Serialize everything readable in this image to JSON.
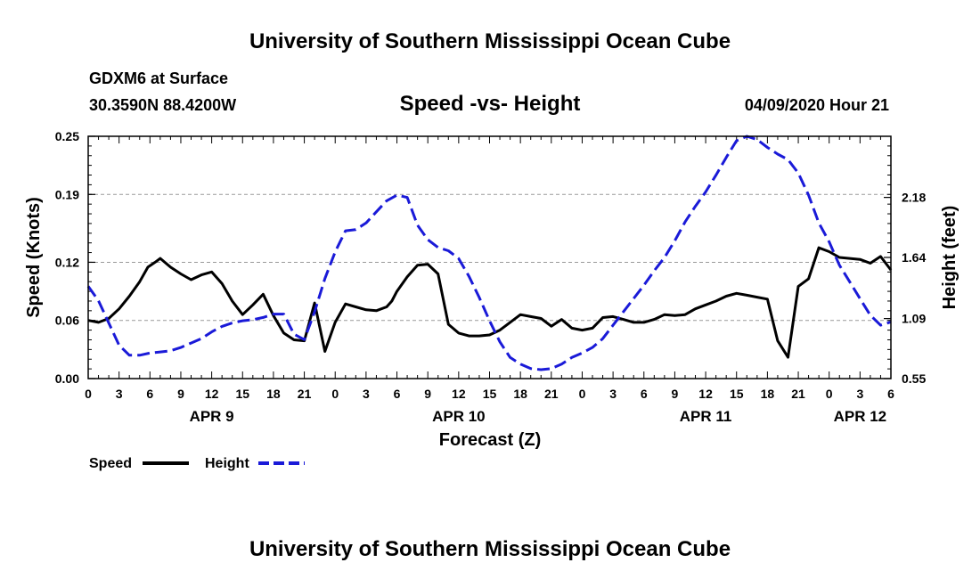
{
  "header": {
    "title": "University of Southern Mississippi Ocean Cube",
    "station": "GDXM6 at Surface",
    "coords": "30.3590N 88.4200W",
    "datetime": "04/09/2020 Hour 21",
    "footer": "University of Southern Mississippi Ocean Cube"
  },
  "chart_data": {
    "type": "line",
    "title": "Speed -vs- Height",
    "xlabel": "Forecast (Z)",
    "ylabel_left": "Speed (Knots)",
    "ylabel_right": "Height (feet)",
    "xlim": [
      0,
      78
    ],
    "x_tick_labels": [
      "0",
      "3",
      "6",
      "9",
      "12",
      "15",
      "18",
      "21",
      "0",
      "3",
      "6",
      "9",
      "12",
      "15",
      "18",
      "21",
      "0",
      "3",
      "6",
      "9",
      "12",
      "15",
      "18",
      "21",
      "0",
      "3",
      "6"
    ],
    "date_labels": [
      {
        "label": "APR 9",
        "hour": 12
      },
      {
        "label": "APR 10",
        "hour": 36
      },
      {
        "label": "APR 11",
        "hour": 60
      },
      {
        "label": "APR 12",
        "hour": 75
      }
    ],
    "y_left": {
      "ylim": [
        0,
        0.25
      ],
      "ticks": [
        "0.00",
        "0.06",
        "0.12",
        "0.19",
        "0.25"
      ]
    },
    "y_right": {
      "ylim": [
        0.55,
        2.73
      ],
      "ticks": [
        "0.55",
        "1.09",
        "1.64",
        "2.18"
      ]
    },
    "colors": {
      "speed": "#000000",
      "height": "#1a1ad8"
    },
    "series": [
      {
        "name": "Speed",
        "axis": "left",
        "x": [
          0,
          1,
          2,
          3,
          4,
          5,
          5.8,
          6.5,
          7,
          8,
          9,
          10,
          11,
          12,
          13,
          14,
          15,
          16,
          17,
          18,
          19,
          20,
          21,
          22,
          23,
          24,
          25,
          26,
          27,
          28,
          29,
          29.5,
          30,
          31,
          32,
          33,
          34,
          35,
          36,
          37,
          38,
          39,
          40,
          41,
          42,
          43,
          44,
          45,
          46,
          47,
          48,
          49,
          50,
          51,
          52,
          53,
          54,
          55,
          56,
          57,
          58,
          59,
          60,
          61,
          62,
          63,
          64,
          65,
          66,
          67,
          68,
          69,
          70,
          71,
          72,
          73,
          74,
          75,
          76,
          77,
          78
        ],
        "values": [
          0.06,
          0.058,
          0.062,
          0.072,
          0.085,
          0.1,
          0.115,
          0.12,
          0.124,
          0.115,
          0.108,
          0.102,
          0.107,
          0.11,
          0.098,
          0.08,
          0.066,
          0.076,
          0.087,
          0.065,
          0.047,
          0.04,
          0.039,
          0.078,
          0.028,
          0.058,
          0.077,
          0.074,
          0.071,
          0.07,
          0.074,
          0.08,
          0.09,
          0.105,
          0.117,
          0.118,
          0.108,
          0.056,
          0.047,
          0.044,
          0.044,
          0.045,
          0.05,
          0.058,
          0.066,
          0.064,
          0.062,
          0.054,
          0.061,
          0.052,
          0.05,
          0.052,
          0.063,
          0.064,
          0.061,
          0.058,
          0.058,
          0.061,
          0.066,
          0.065,
          0.066,
          0.072,
          0.076,
          0.08,
          0.085,
          0.088,
          0.086,
          0.084,
          0.082,
          0.039,
          0.022,
          0.095,
          0.103,
          0.135,
          0.131,
          0.125,
          0.124,
          0.123,
          0.119,
          0.126,
          0.112
        ]
      },
      {
        "name": "Height",
        "axis": "right",
        "x": [
          0,
          1,
          2,
          3,
          4,
          5,
          6,
          7,
          8,
          9,
          10,
          11,
          12,
          13,
          14,
          15,
          16,
          17,
          18,
          19,
          20,
          21,
          22,
          23,
          24,
          25,
          26,
          27,
          28,
          29,
          30,
          31,
          32,
          33,
          34,
          35,
          36,
          37,
          38,
          39,
          40,
          41,
          42,
          43,
          44,
          45,
          46,
          47,
          48,
          49,
          50,
          51,
          52,
          53,
          54,
          55,
          56,
          57,
          58,
          59,
          60,
          61,
          62,
          63,
          64,
          65,
          66,
          67,
          68,
          69,
          70,
          71,
          72,
          73,
          74,
          75,
          76,
          77,
          78
        ],
        "values": [
          1.38,
          1.25,
          1.05,
          0.85,
          0.76,
          0.76,
          0.78,
          0.79,
          0.8,
          0.83,
          0.87,
          0.91,
          0.97,
          1.02,
          1.05,
          1.07,
          1.08,
          1.1,
          1.13,
          1.13,
          0.95,
          0.9,
          1.15,
          1.45,
          1.69,
          1.88,
          1.89,
          1.95,
          2.05,
          2.15,
          2.2,
          2.18,
          1.93,
          1.8,
          1.73,
          1.7,
          1.63,
          1.47,
          1.28,
          1.07,
          0.88,
          0.74,
          0.68,
          0.64,
          0.63,
          0.64,
          0.68,
          0.74,
          0.78,
          0.83,
          0.91,
          1.03,
          1.15,
          1.27,
          1.39,
          1.52,
          1.64,
          1.79,
          1.96,
          2.1,
          2.23,
          2.38,
          2.54,
          2.69,
          2.73,
          2.7,
          2.63,
          2.57,
          2.52,
          2.4,
          2.2,
          1.95,
          1.78,
          1.57,
          1.42,
          1.27,
          1.12,
          1.03,
          1.06
        ]
      }
    ]
  }
}
